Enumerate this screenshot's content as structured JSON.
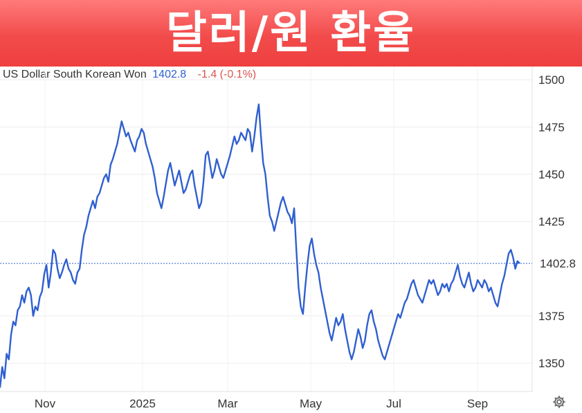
{
  "banner": {
    "title": "달러/원 환율"
  },
  "legend": {
    "name": "US Dollar South Korean Won",
    "price": "1402.8",
    "change": "-1.4 (-0.1%)"
  },
  "icons": {
    "settings": "gear-icon"
  },
  "colors": {
    "line": "#2f5fd0",
    "banner": "#f24b4b",
    "change": "#d9534f"
  },
  "chart_data": {
    "type": "line",
    "title": "",
    "xlabel": "",
    "ylabel": "",
    "x_tick_labels": [
      "Nov",
      "2025",
      "Mar",
      "May",
      "Jul",
      "Sep"
    ],
    "y_ticks": [
      1350,
      1375,
      1425,
      1450,
      1475,
      1500
    ],
    "ylim": [
      1335,
      1507
    ],
    "grid": true,
    "last_value_label": "1402.8",
    "series": [
      {
        "values": [
          1337,
          1348,
          1342,
          1355,
          1352,
          1365,
          1372,
          1370,
          1378,
          1380,
          1386,
          1382,
          1388,
          1390,
          1386,
          1375,
          1380,
          1378,
          1385,
          1388,
          1397,
          1402,
          1390,
          1398,
          1410,
          1408,
          1400,
          1395,
          1398,
          1402,
          1405,
          1400,
          1398,
          1394,
          1392,
          1398,
          1400,
          1410,
          1418,
          1422,
          1428,
          1432,
          1436,
          1432,
          1438,
          1440,
          1444,
          1448,
          1450,
          1446,
          1455,
          1458,
          1462,
          1466,
          1472,
          1478,
          1474,
          1470,
          1472,
          1468,
          1465,
          1462,
          1468,
          1470,
          1474,
          1472,
          1466,
          1462,
          1458,
          1454,
          1448,
          1440,
          1436,
          1432,
          1438,
          1445,
          1452,
          1456,
          1450,
          1444,
          1448,
          1452,
          1446,
          1440,
          1442,
          1446,
          1450,
          1452,
          1444,
          1438,
          1432,
          1435,
          1446,
          1460,
          1462,
          1455,
          1448,
          1452,
          1458,
          1454,
          1450,
          1448,
          1452,
          1456,
          1460,
          1465,
          1470,
          1466,
          1468,
          1472,
          1470,
          1468,
          1474,
          1472,
          1462,
          1470,
          1480,
          1487,
          1470,
          1456,
          1450,
          1438,
          1428,
          1425,
          1420,
          1425,
          1430,
          1435,
          1438,
          1434,
          1430,
          1428,
          1424,
          1432,
          1410,
          1390,
          1380,
          1376,
          1390,
          1402,
          1412,
          1416,
          1408,
          1402,
          1398,
          1390,
          1384,
          1378,
          1372,
          1366,
          1362,
          1368,
          1374,
          1370,
          1372,
          1376,
          1368,
          1362,
          1356,
          1352,
          1356,
          1362,
          1368,
          1364,
          1358,
          1362,
          1370,
          1376,
          1378,
          1372,
          1368,
          1362,
          1358,
          1354,
          1352,
          1356,
          1360,
          1364,
          1368,
          1372,
          1376,
          1374,
          1378,
          1382,
          1384,
          1388,
          1392,
          1394,
          1390,
          1386,
          1384,
          1382,
          1386,
          1390,
          1394,
          1392,
          1394,
          1390,
          1386,
          1388,
          1392,
          1390,
          1392,
          1388,
          1392,
          1394,
          1398,
          1402,
          1396,
          1392,
          1390,
          1394,
          1398,
          1392,
          1388,
          1390,
          1394,
          1392,
          1390,
          1394,
          1392,
          1388,
          1390,
          1386,
          1382,
          1380,
          1386,
          1392,
          1396,
          1402,
          1408,
          1410,
          1406,
          1400,
          1404,
          1402.8
        ]
      }
    ]
  }
}
